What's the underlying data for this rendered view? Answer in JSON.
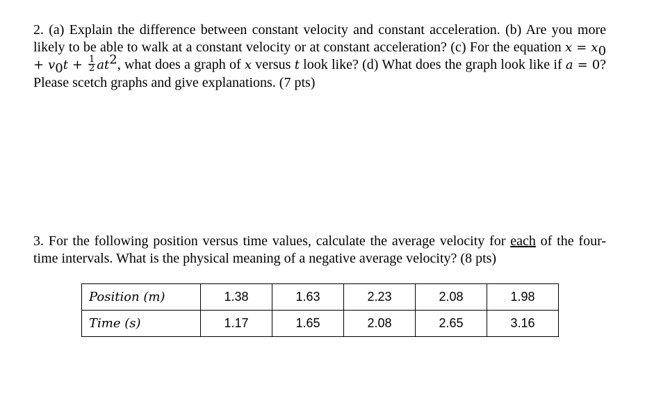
{
  "question2": {
    "part1": "2. (a) Explain the difference between constant velocity and constant acceleration. (b) Are you more likely to be able to walk at a constant velocity or at constant acceleration? (c) For the equation ",
    "eq_x": "x",
    "eq_equals": " = ",
    "eq_x0": "x",
    "eq_x0_sub": "0",
    "eq_plus1": " + ",
    "eq_v0": "v",
    "eq_v0_sub": "0",
    "eq_t": "t",
    "eq_plus2": " + ",
    "frac_num": "1",
    "frac_den": "2",
    "eq_at": "at",
    "eq_sup": "2",
    "part2": ", what does a graph of ",
    "var_x": "x",
    "part3": " versus ",
    "var_t": "t",
    "part4": " look like? (d) What does the graph look like if ",
    "var_a": "a",
    "eq2_equals": " = ",
    "eq2_zero": "0",
    "part5": "? Please scetch graphs and give explanations. (7 pts)"
  },
  "question3": {
    "part1": "3. For the following position versus time values, calculate the average velocity for ",
    "underlined": "each",
    "part2": " of the four-time intervals. What is the physical meaning of a negative average velocity? (8 pts)"
  },
  "table": {
    "rows": [
      {
        "label": "Position (m)",
        "values": [
          "1.38",
          "1.63",
          "2.23",
          "2.08",
          "1.98"
        ]
      },
      {
        "label": "Time (s)",
        "values": [
          "1.17",
          "1.65",
          "2.08",
          "2.65",
          "3.16"
        ]
      }
    ]
  }
}
